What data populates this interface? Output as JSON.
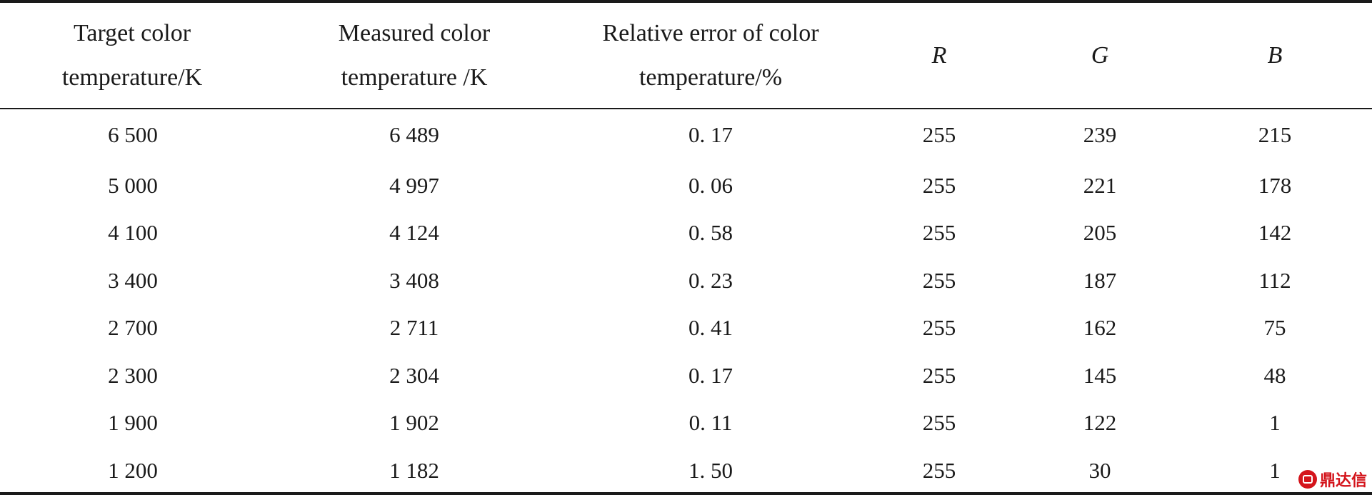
{
  "table": {
    "columns": [
      [
        "Target color",
        "temperature/K"
      ],
      [
        "Measured color",
        "temperature /K"
      ],
      [
        "Relative error of color",
        "temperature/%"
      ],
      [
        "R"
      ],
      [
        "G"
      ],
      [
        "B"
      ]
    ],
    "rows": [
      [
        "6 500",
        "6 489",
        "0. 17",
        "255",
        "239",
        "215"
      ],
      [
        "5 000",
        "4 997",
        "0. 06",
        "255",
        "221",
        "178"
      ],
      [
        "4 100",
        "4 124",
        "0. 58",
        "255",
        "205",
        "142"
      ],
      [
        "3 400",
        "3 408",
        "0. 23",
        "255",
        "187",
        "112"
      ],
      [
        "2 700",
        "2 711",
        "0. 41",
        "255",
        "162",
        "75"
      ],
      [
        "2 300",
        "2 304",
        "0. 17",
        "255",
        "145",
        "48"
      ],
      [
        "1 900",
        "1 902",
        "0. 11",
        "255",
        "122",
        "1"
      ],
      [
        "1 200",
        "1 182",
        "1. 50",
        "255",
        "30",
        "1"
      ]
    ]
  },
  "watermark": {
    "text": "鼎达信",
    "color": "#d4151c"
  }
}
